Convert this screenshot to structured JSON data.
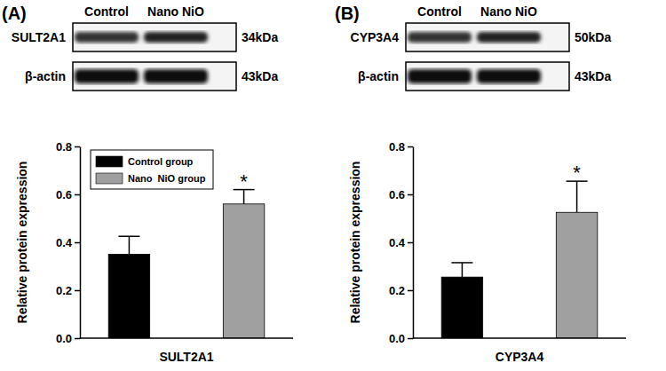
{
  "chart_data": [
    {
      "type": "bar",
      "title": "(A)",
      "blot": {
        "columns": [
          "Control",
          "Nano NiO"
        ],
        "rows": [
          {
            "label": "SULT2A1",
            "size": "34kDa"
          },
          {
            "label": "β-actin",
            "size": "43kDa"
          }
        ]
      },
      "categories": [
        "SULT2A1"
      ],
      "series": [
        {
          "name": "Control group",
          "color": "#000000",
          "values": [
            0.35
          ],
          "errors": [
            0.075
          ]
        },
        {
          "name": "Nano  NiO group",
          "color": "#a0a0a0",
          "values": [
            0.56
          ],
          "errors": [
            0.06
          ],
          "annotation": "*"
        }
      ],
      "y_label": "Relative protein expression",
      "ylim": [
        0,
        0.8
      ],
      "yticks": [
        {
          "value": 0,
          "label": "0.0"
        },
        0.2,
        0.4,
        0.6,
        0.8
      ],
      "legend": "top-left"
    },
    {
      "type": "bar",
      "title": "(B)",
      "blot": {
        "columns": [
          "Control",
          "Nano NiO"
        ],
        "rows": [
          {
            "label": "CYP3A4",
            "size": "50kDa"
          },
          {
            "label": "β-actin",
            "size": "43kDa"
          }
        ]
      },
      "categories": [
        "CYP3A4"
      ],
      "series": [
        {
          "color": "#000000",
          "values": [
            0.255
          ],
          "errors": [
            0.06
          ]
        },
        {
          "color": "#a0a0a0",
          "values": [
            0.525
          ],
          "errors": [
            0.13
          ],
          "annotation": "*"
        }
      ],
      "y_label": "Relative protein expression",
      "ylim": [
        0,
        0.8
      ],
      "yticks": [
        {
          "value": 0,
          "label": "0.0"
        },
        0.2,
        0.4,
        0.6,
        0.8
      ]
    }
  ]
}
